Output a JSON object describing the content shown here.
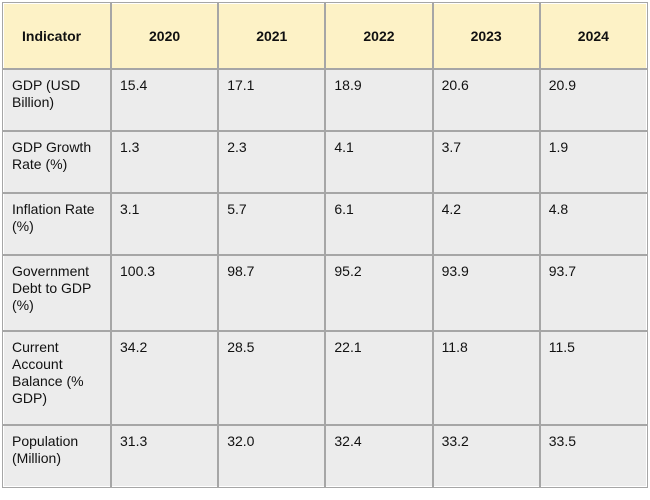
{
  "table": {
    "header": [
      "Indicator",
      "2020",
      "2021",
      "2022",
      "2023",
      "2024"
    ],
    "rows": [
      [
        "GDP (USD Billion)",
        "15.4",
        "17.1",
        "18.9",
        "20.6",
        "20.9"
      ],
      [
        "GDP Growth Rate (%)",
        "1.3",
        "2.3",
        "4.1",
        "3.7",
        "1.9"
      ],
      [
        "Inflation Rate (%)",
        "3.1",
        "5.7",
        "6.1",
        "4.2",
        "4.8"
      ],
      [
        "Government Debt to GDP (%)",
        "100.3",
        "98.7",
        "95.2",
        "93.9",
        "93.7"
      ],
      [
        "Current Account Balance (% GDP)",
        "34.2",
        "28.5",
        "22.1",
        "11.8",
        "11.5"
      ],
      [
        "Population (Million)",
        "31.3",
        "32.0",
        "32.4",
        "33.2",
        "33.5"
      ]
    ]
  }
}
